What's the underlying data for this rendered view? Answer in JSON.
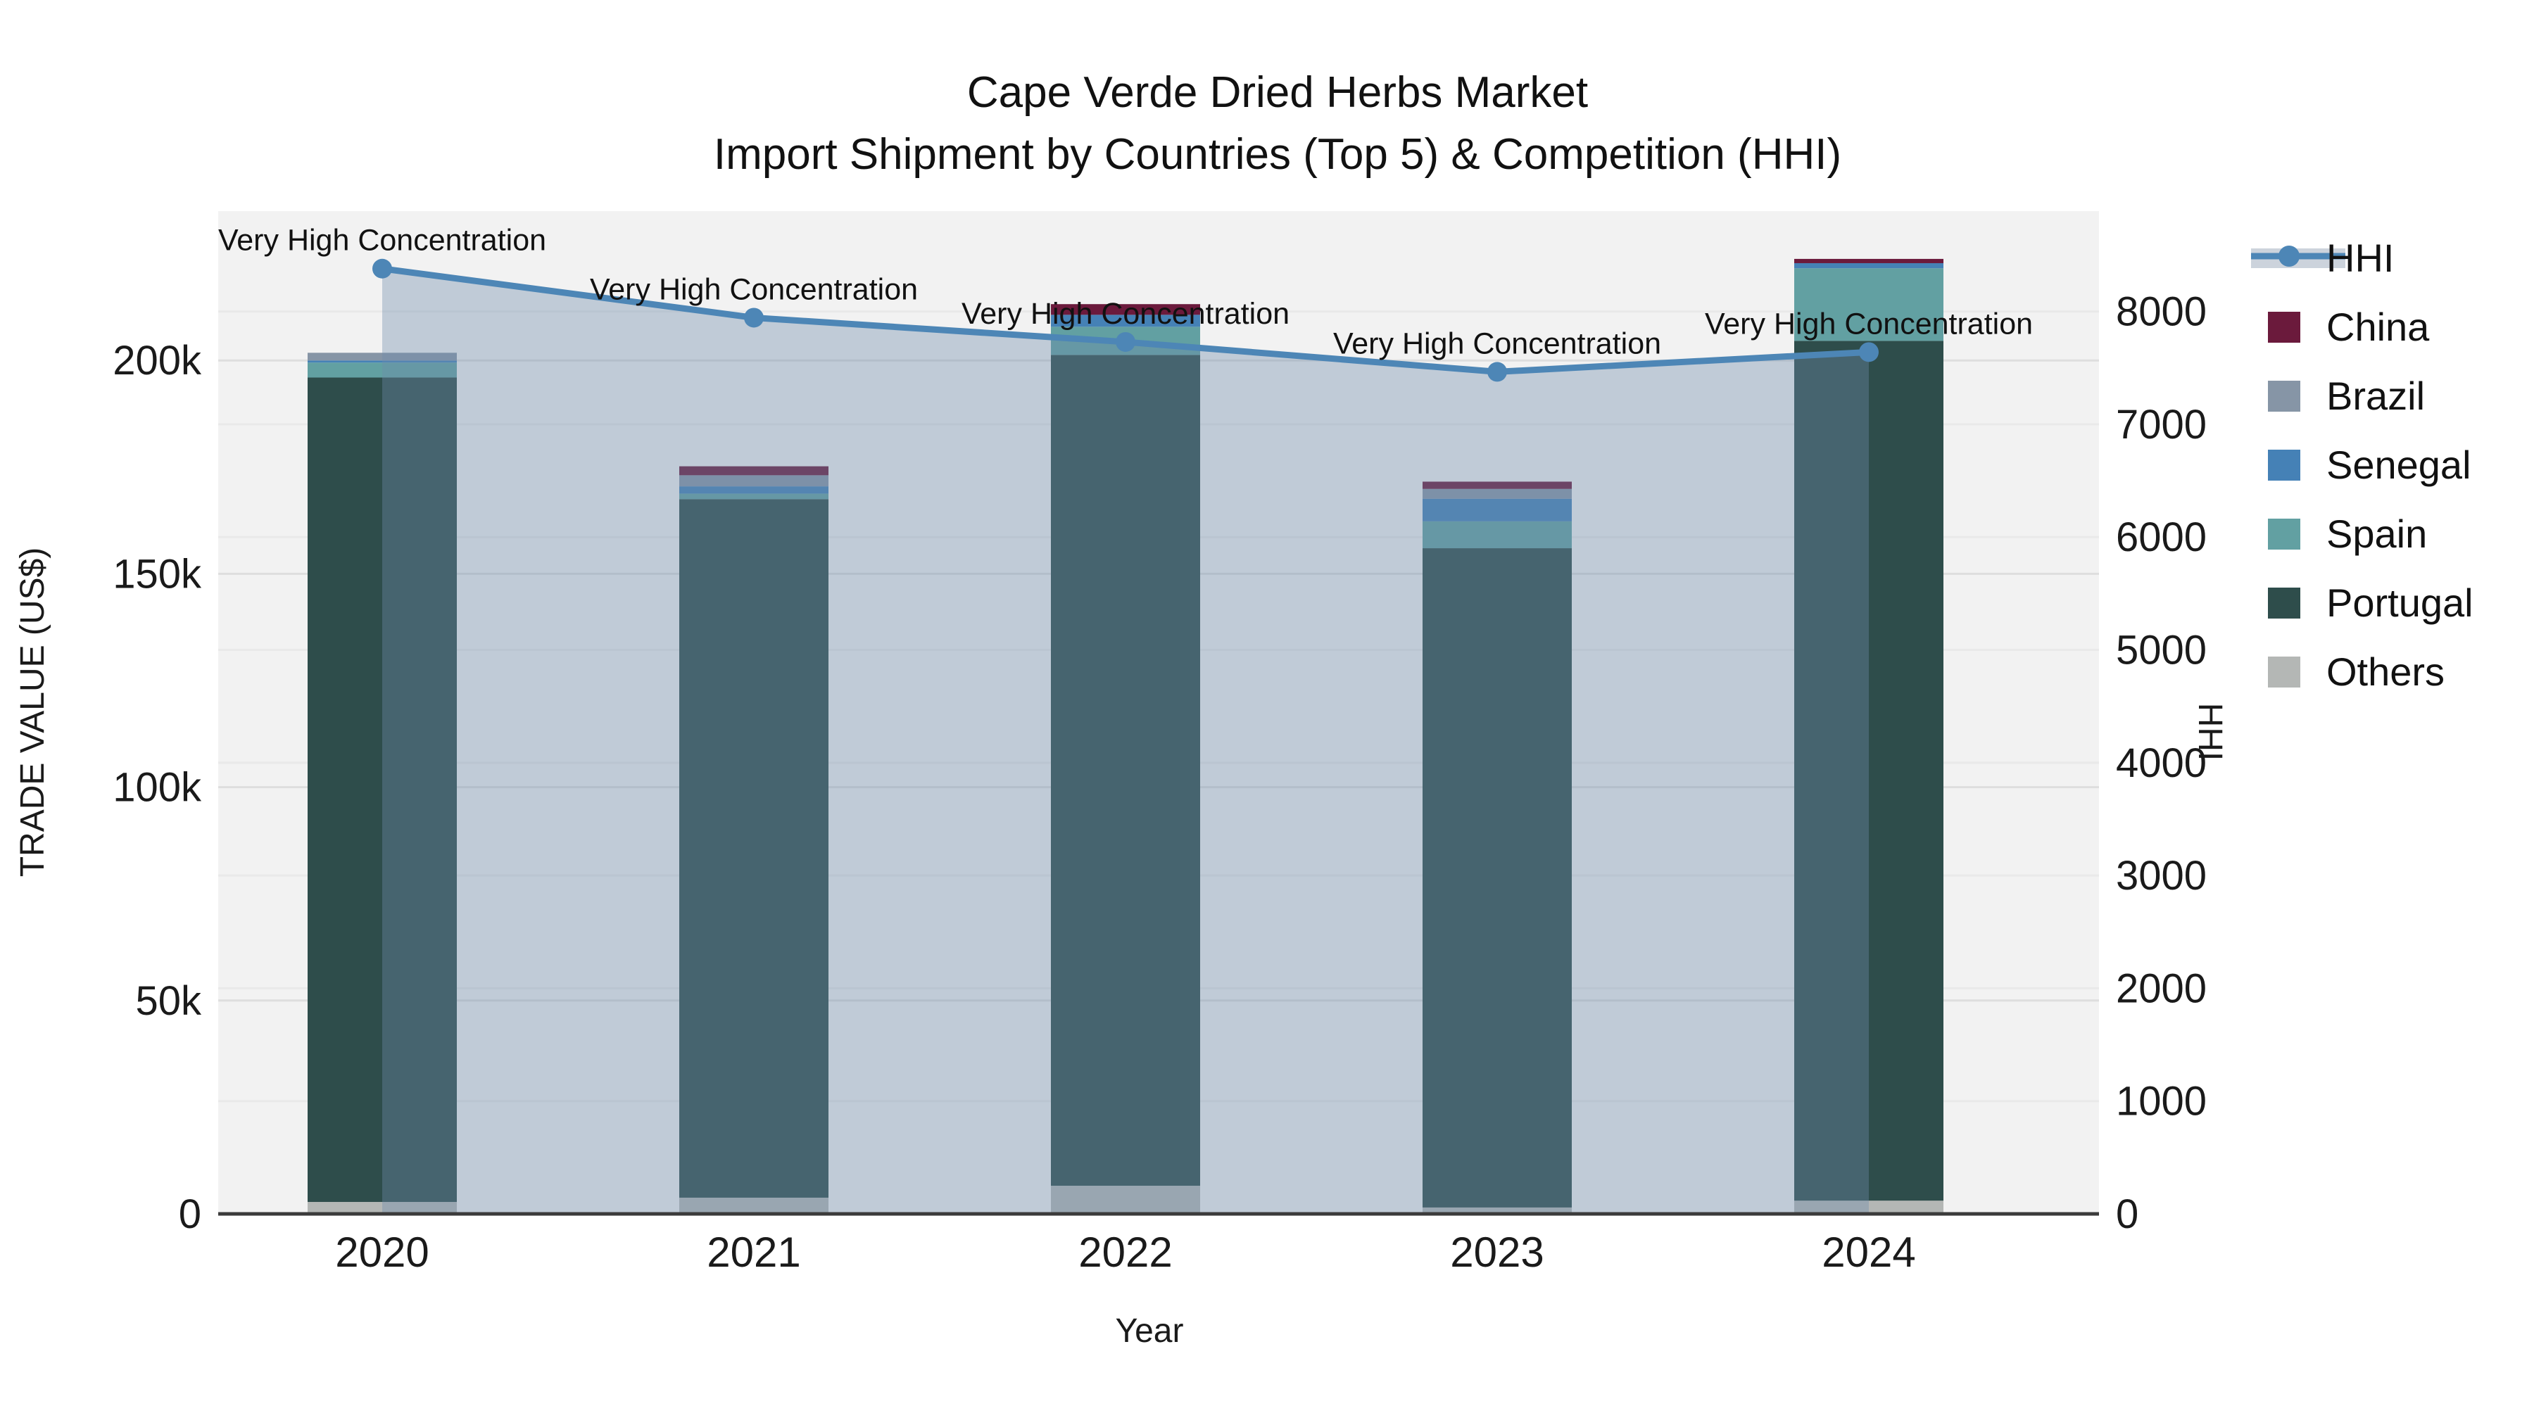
{
  "title": {
    "line1": "Cape Verde Dried Herbs Market",
    "line2": "Import Shipment by Countries (Top 5) & Competition (HHI)"
  },
  "legend": {
    "items": [
      {
        "label": "HHI",
        "type": "line",
        "color": "#4d86b6",
        "band_color": "#ccd3dc"
      },
      {
        "label": "China",
        "type": "swatch",
        "color": "#6b1a3c"
      },
      {
        "label": "Brazil",
        "type": "swatch",
        "color": "#8695a6"
      },
      {
        "label": "Senegal",
        "type": "swatch",
        "color": "#4581b6"
      },
      {
        "label": "Spain",
        "type": "swatch",
        "color": "#62a0a2"
      },
      {
        "label": "Portugal",
        "type": "swatch",
        "color": "#2e4d4b"
      },
      {
        "label": "Others",
        "type": "swatch",
        "color": "#b4b7b5"
      }
    ]
  },
  "colors": {
    "plot_background": "#f2f2f2",
    "page_background": "#ffffff",
    "grid_left": "#dedede",
    "grid_right": "#e9e9e9",
    "zero_line": "#3b3b3b",
    "tick_text": "#1a1a1a",
    "annotation_text": "#111111",
    "hhi_line": "#4d86b6",
    "hhi_area": "rgba(110,140,170,0.38)"
  },
  "chart_data": {
    "type": "combo: stacked-bar + line-area (dual axis)",
    "title": "Cape Verde Dried Herbs Market — Import Shipment by Countries (Top 5) & Competition (HHI)",
    "categories": [
      "2020",
      "2021",
      "2022",
      "2023",
      "2024"
    ],
    "x_axis": {
      "title": "Year"
    },
    "left_axis": {
      "title": "TRADE VALUE (US$)",
      "tick_labels": [
        "0",
        "50k",
        "100k",
        "150k",
        "200k"
      ],
      "tick_values": [
        0,
        50000,
        100000,
        150000,
        200000
      ],
      "min": 0,
      "max": 235000
    },
    "right_axis": {
      "title": "HHI",
      "tick_labels": [
        "0",
        "1000",
        "2000",
        "3000",
        "4000",
        "5000",
        "6000",
        "7000",
        "8000"
      ],
      "tick_values": [
        0,
        1000,
        2000,
        3000,
        4000,
        5000,
        6000,
        7000,
        8000
      ],
      "min": 0,
      "max": 8890
    },
    "series": [
      {
        "name": "China",
        "type": "bar",
        "color": "#6b1a3c",
        "values": [
          0,
          2100,
          2500,
          1700,
          1000
        ]
      },
      {
        "name": "Brazil",
        "type": "bar",
        "color": "#8695a6",
        "values": [
          1800,
          2600,
          0,
          2300,
          0
        ]
      },
      {
        "name": "Senegal",
        "type": "bar",
        "color": "#4581b6",
        "values": [
          500,
          1700,
          2800,
          5300,
          1200
        ]
      },
      {
        "name": "Spain",
        "type": "bar",
        "color": "#62a0a2",
        "values": [
          3500,
          1300,
          6600,
          6300,
          17000
        ]
      },
      {
        "name": "Portugal",
        "type": "bar",
        "color": "#2e4d4b",
        "values": [
          193200,
          163700,
          194700,
          154500,
          201500
        ]
      },
      {
        "name": "Others",
        "type": "bar",
        "color": "#b4b7b5",
        "values": [
          2800,
          3800,
          6600,
          1500,
          3100
        ]
      }
    ],
    "stack_order_bottom_to_top": [
      "Others",
      "Portugal",
      "Spain",
      "Senegal",
      "Brazil",
      "China"
    ],
    "bar_totals": [
      201800,
      175200,
      213200,
      171600,
      223800
    ],
    "line_series": {
      "name": "HHI",
      "axis": "right",
      "style": "line+markers+area",
      "values": [
        8380,
        7945,
        7730,
        7465,
        7640
      ]
    },
    "annotations": [
      "Very High Concentration",
      "Very High Concentration",
      "Very High Concentration",
      "Very High Concentration",
      "Very High Concentration"
    ],
    "legend_position": "right",
    "grid": true
  }
}
